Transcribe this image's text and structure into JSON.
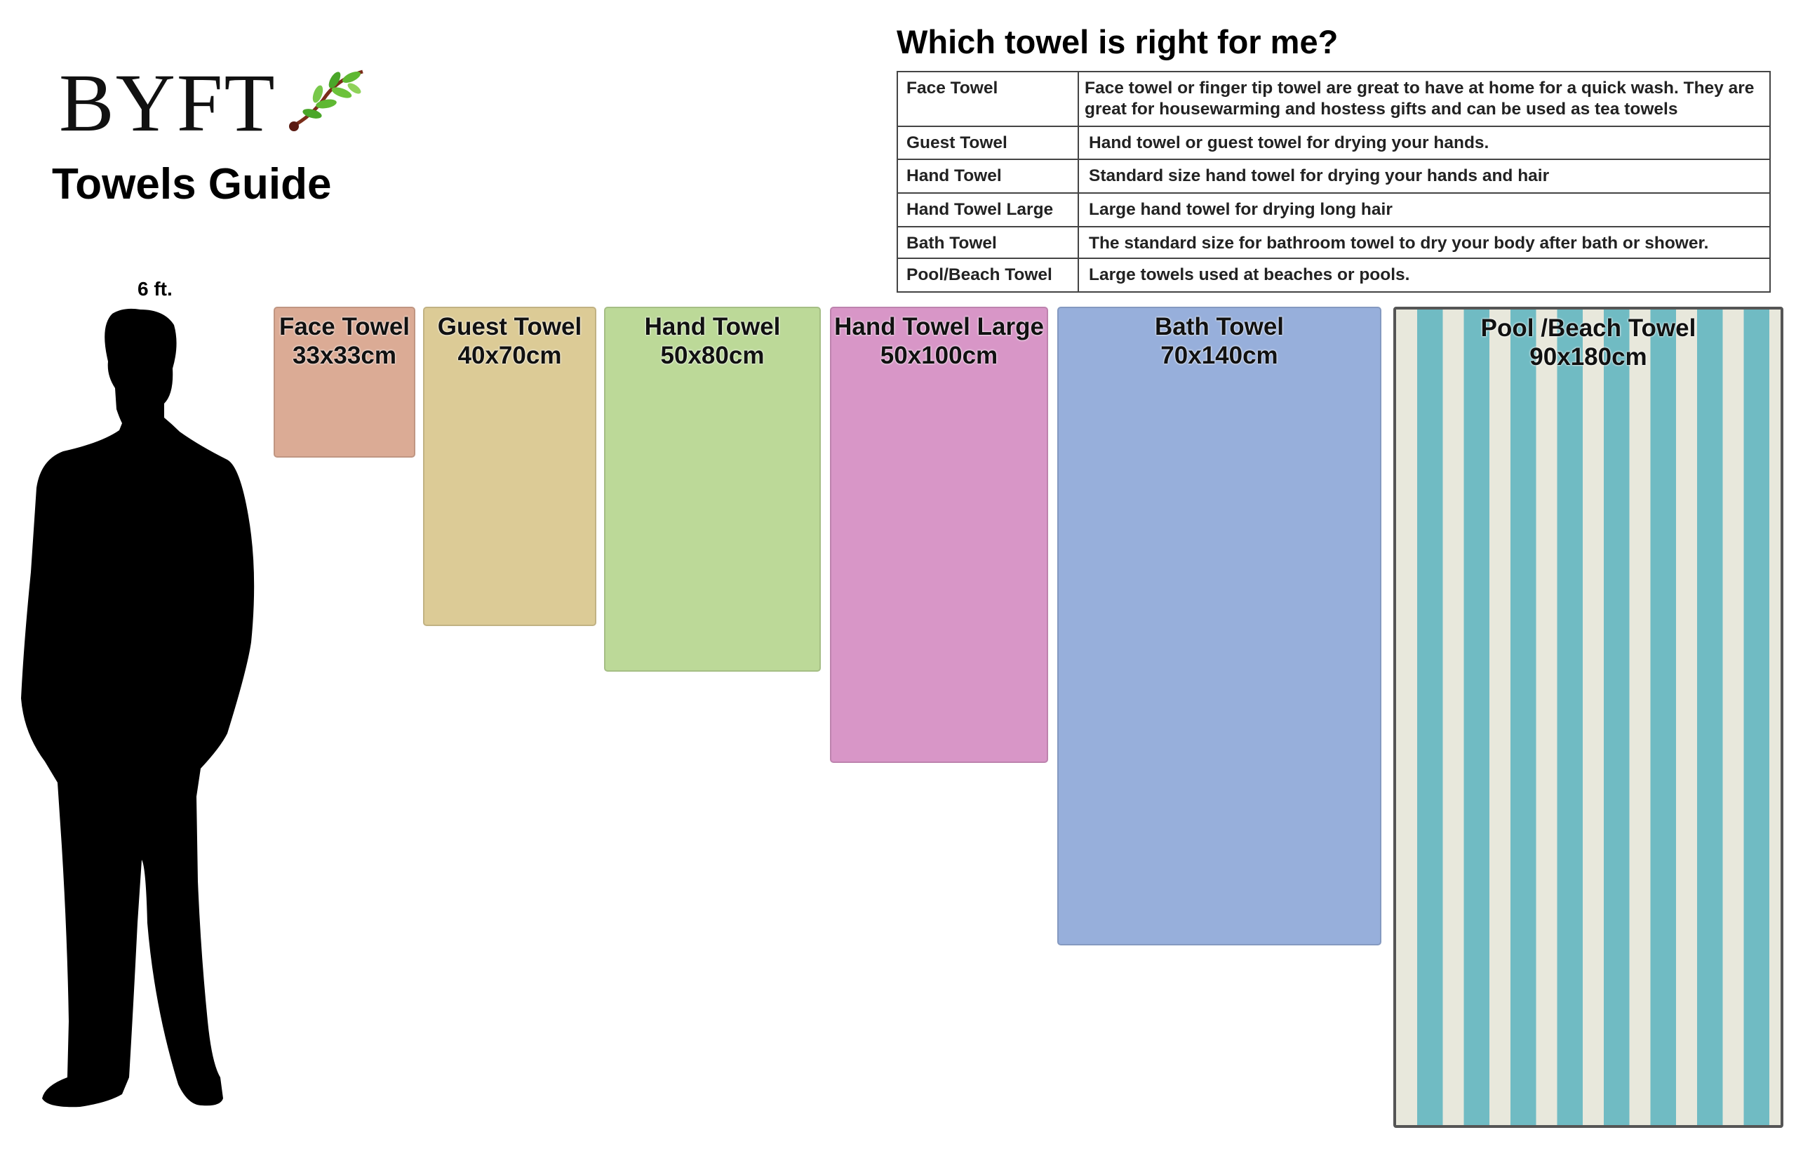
{
  "brand": {
    "name": "BYFT",
    "leaf_icon": "olive-branch-icon"
  },
  "guide_title": "Towels Guide",
  "person": {
    "height_label": "6 ft."
  },
  "table": {
    "title": "Which towel is right for me?",
    "rows": [
      {
        "name": "Face Towel",
        "desc": "Face towel or finger tip towel are great to have at home for a quick wash. They are great for housewarming and hostess gifts and can be used as tea towels"
      },
      {
        "name": "Guest Towel",
        "desc": "Hand towel or guest towel for drying your hands."
      },
      {
        "name": "Hand Towel",
        "desc": "Standard size hand towel for drying your hands and hair"
      },
      {
        "name": "Hand Towel Large",
        "desc": "Large hand towel for drying long hair"
      },
      {
        "name": "Bath Towel",
        "desc": "The standard size for bathroom towel to dry your body after bath or shower."
      },
      {
        "name": "Pool/Beach Towel",
        "desc": "Large towels used at beaches or pools."
      }
    ]
  },
  "towels": [
    {
      "name": "Face Towel",
      "size": "33x33cm",
      "width_cm": 33,
      "length_cm": 33,
      "color": "#dbab95"
    },
    {
      "name": "Guest Towel",
      "size": "40x70cm",
      "width_cm": 40,
      "length_cm": 70,
      "color": "#dccb96"
    },
    {
      "name": "Hand Towel",
      "size": "50x80cm",
      "width_cm": 50,
      "length_cm": 80,
      "color": "#bcd998"
    },
    {
      "name": "Hand Towel Large",
      "size": "50x100cm",
      "width_cm": 50,
      "length_cm": 100,
      "color": "#d896c7"
    },
    {
      "name": "Bath Towel",
      "size": "70x140cm",
      "width_cm": 70,
      "length_cm": 140,
      "color": "#97afdb"
    },
    {
      "name": "Pool /Beach Towel",
      "size": "90x180cm",
      "width_cm": 90,
      "length_cm": 180,
      "color": "#70bbc3",
      "pattern": "striped"
    }
  ]
}
